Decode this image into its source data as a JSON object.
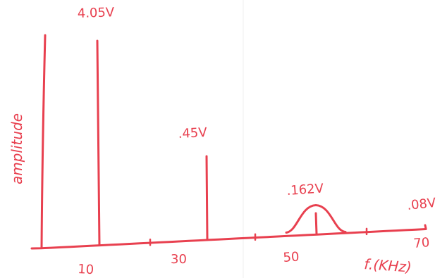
{
  "chart_data": {
    "type": "bar",
    "style": "hand-drawn amplitude spectrum",
    "xlabel": "f.(KHz)",
    "ylabel": "amplitude",
    "x_ticks": [
      10,
      30,
      50,
      70
    ],
    "x_tick_labels": [
      "10",
      "30",
      "50",
      "70"
    ],
    "series": [
      {
        "x": 10,
        "y": 4.05,
        "label": "4.05V"
      },
      {
        "x": 30,
        "y": 0.45,
        "label": ".45V"
      },
      {
        "x": 50,
        "y": 0.162,
        "label": ".162V"
      },
      {
        "x": 70,
        "y": 0.08,
        "label": ".08V"
      }
    ],
    "hump": {
      "center": 50,
      "half_width": 5
    },
    "grid": false,
    "color": "#e8404f"
  }
}
